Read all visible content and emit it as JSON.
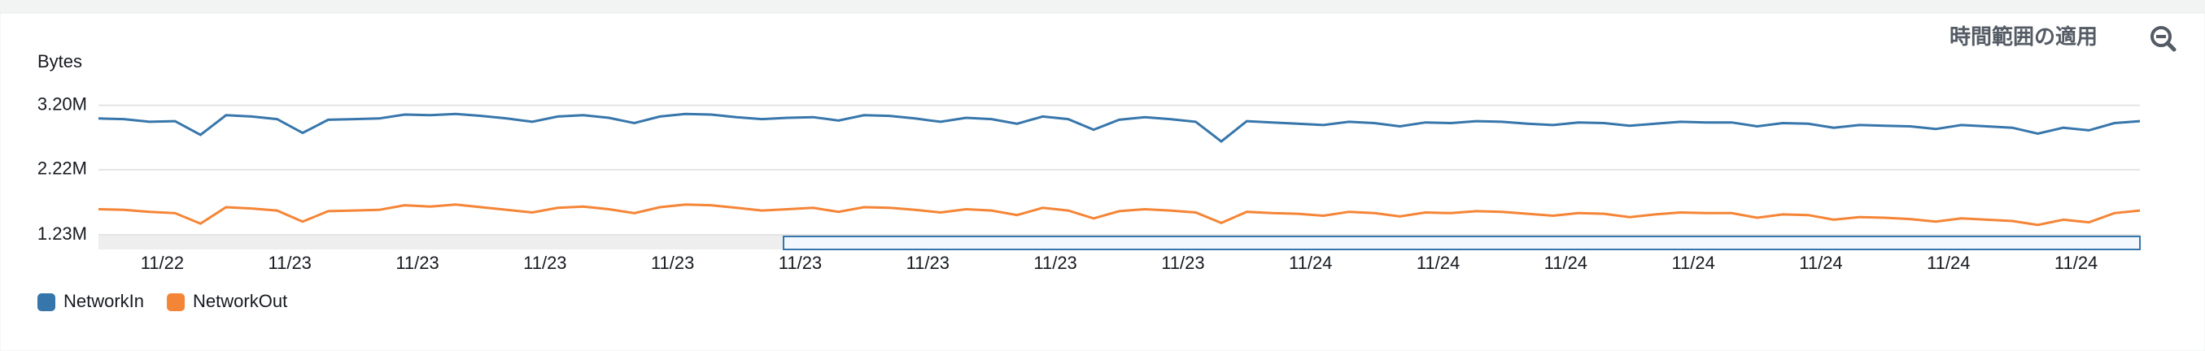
{
  "chart_data": {
    "type": "line",
    "header": "時間範囲の適用",
    "y_label": "Bytes",
    "ylim": [
      1230000,
      3480000
    ],
    "yticks": [
      {
        "value": 1230000,
        "label": "1.23M"
      },
      {
        "value": 2220000,
        "label": "2.22M"
      },
      {
        "value": 3200000,
        "label": "3.20M"
      }
    ],
    "xlim": [
      0,
      80
    ],
    "xticks": [
      {
        "value": 2.5,
        "label": "11/22"
      },
      {
        "value": 7.5,
        "label": "11/23"
      },
      {
        "value": 12.5,
        "label": "11/23"
      },
      {
        "value": 17.5,
        "label": "11/23"
      },
      {
        "value": 22.5,
        "label": "11/23"
      },
      {
        "value": 27.5,
        "label": "11/23"
      },
      {
        "value": 32.5,
        "label": "11/23"
      },
      {
        "value": 37.5,
        "label": "11/23"
      },
      {
        "value": 42.5,
        "label": "11/23"
      },
      {
        "value": 47.5,
        "label": "11/24"
      },
      {
        "value": 52.5,
        "label": "11/24"
      },
      {
        "value": 57.5,
        "label": "11/24"
      },
      {
        "value": 62.5,
        "label": "11/24"
      },
      {
        "value": 67.5,
        "label": "11/24"
      },
      {
        "value": 72.5,
        "label": "11/24"
      },
      {
        "value": 77.5,
        "label": "11/24"
      }
    ],
    "grid": true,
    "legend": "bottom-left",
    "series": [
      {
        "name": "NetworkIn",
        "color": "#3776ab",
        "values": [
          3000000,
          2990000,
          2950000,
          2960000,
          2750000,
          3050000,
          3030000,
          2990000,
          2780000,
          2980000,
          2990000,
          3000000,
          3060000,
          3050000,
          3070000,
          3040000,
          3000000,
          2950000,
          3030000,
          3050000,
          3010000,
          2930000,
          3030000,
          3070000,
          3060000,
          3020000,
          2990000,
          3010000,
          3020000,
          2970000,
          3050000,
          3040000,
          3000000,
          2950000,
          3010000,
          2990000,
          2920000,
          3030000,
          2990000,
          2830000,
          2980000,
          3020000,
          2990000,
          2950000,
          2650000,
          2960000,
          2940000,
          2920000,
          2900000,
          2950000,
          2930000,
          2880000,
          2940000,
          2930000,
          2960000,
          2950000,
          2920000,
          2900000,
          2940000,
          2930000,
          2890000,
          2920000,
          2950000,
          2940000,
          2940000,
          2880000,
          2930000,
          2920000,
          2860000,
          2900000,
          2890000,
          2880000,
          2840000,
          2900000,
          2880000,
          2860000,
          2770000,
          2860000,
          2820000,
          2930000,
          2960000
        ]
      },
      {
        "name": "NetworkOut",
        "color": "#f58536",
        "values": [
          1620000,
          1610000,
          1580000,
          1560000,
          1400000,
          1650000,
          1630000,
          1600000,
          1430000,
          1590000,
          1600000,
          1610000,
          1680000,
          1660000,
          1690000,
          1650000,
          1610000,
          1570000,
          1640000,
          1660000,
          1620000,
          1560000,
          1650000,
          1690000,
          1680000,
          1640000,
          1600000,
          1620000,
          1640000,
          1580000,
          1650000,
          1640000,
          1610000,
          1570000,
          1620000,
          1600000,
          1530000,
          1640000,
          1600000,
          1480000,
          1590000,
          1620000,
          1600000,
          1570000,
          1410000,
          1580000,
          1560000,
          1550000,
          1520000,
          1580000,
          1560000,
          1510000,
          1570000,
          1560000,
          1590000,
          1580000,
          1550000,
          1520000,
          1560000,
          1550000,
          1500000,
          1540000,
          1570000,
          1560000,
          1560000,
          1490000,
          1540000,
          1530000,
          1460000,
          1500000,
          1490000,
          1470000,
          1430000,
          1480000,
          1460000,
          1440000,
          1380000,
          1460000,
          1420000,
          1560000,
          1600000
        ]
      }
    ]
  }
}
